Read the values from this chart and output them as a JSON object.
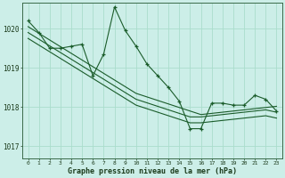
{
  "title": "Graphe pression niveau de la mer (hPa)",
  "background_color": "#cceee8",
  "grid_color": "#aaddcc",
  "line_color": "#1a5c2a",
  "x_ticks": [
    0,
    1,
    2,
    3,
    4,
    5,
    6,
    7,
    8,
    9,
    10,
    11,
    12,
    13,
    14,
    15,
    16,
    17,
    18,
    19,
    20,
    21,
    22,
    23
  ],
  "y_ticks": [
    1017,
    1018,
    1019,
    1020
  ],
  "ylim": [
    1016.7,
    1020.65
  ],
  "xlim": [
    -0.5,
    23.5
  ],
  "main": [
    1020.2,
    1019.9,
    1019.5,
    1019.5,
    1019.55,
    1019.6,
    1018.8,
    1019.35,
    1020.55,
    1019.95,
    1019.55,
    1019.1,
    1018.8,
    1018.5,
    1018.15,
    1017.45,
    1017.45,
    1018.1,
    1018.1,
    1018.05,
    1018.05,
    1018.3,
    1018.2,
    1017.9
  ],
  "band1": [
    1020.05,
    1019.88,
    1019.71,
    1019.54,
    1019.37,
    1019.2,
    1019.03,
    1018.86,
    1018.69,
    1018.52,
    1018.35,
    1018.26,
    1018.17,
    1018.08,
    1017.99,
    1017.9,
    1017.81,
    1017.84,
    1017.87,
    1017.9,
    1017.93,
    1017.96,
    1017.99,
    1018.02
  ],
  "band2": [
    1019.9,
    1019.73,
    1019.56,
    1019.39,
    1019.22,
    1019.05,
    1018.88,
    1018.71,
    1018.54,
    1018.37,
    1018.2,
    1018.11,
    1018.02,
    1017.93,
    1017.84,
    1017.75,
    1017.75,
    1017.78,
    1017.81,
    1017.84,
    1017.87,
    1017.9,
    1017.93,
    1017.87
  ],
  "band3": [
    1019.75,
    1019.58,
    1019.41,
    1019.24,
    1019.07,
    1018.9,
    1018.73,
    1018.56,
    1018.39,
    1018.22,
    1018.05,
    1017.96,
    1017.87,
    1017.78,
    1017.69,
    1017.6,
    1017.6,
    1017.63,
    1017.66,
    1017.69,
    1017.72,
    1017.75,
    1017.78,
    1017.72
  ]
}
